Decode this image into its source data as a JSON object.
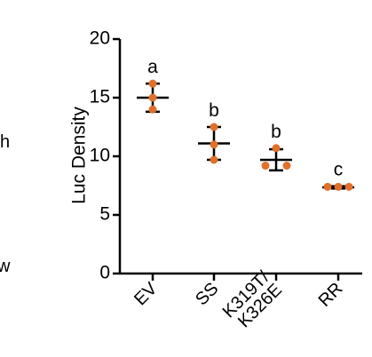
{
  "chart_data": {
    "type": "scatter",
    "title": "",
    "xlabel": "",
    "ylabel": "Luc Density",
    "ylim": [
      0,
      20
    ],
    "yticks": [
      "0",
      "5",
      "10",
      "15",
      "20"
    ],
    "grid": false,
    "legend": "none",
    "categories": [
      "EV",
      "SS",
      "K319T/\nK326E",
      "RR"
    ],
    "category_lines": [
      [
        "EV"
      ],
      [
        "SS"
      ],
      [
        "K319T/",
        "K326E"
      ],
      [
        "RR"
      ]
    ],
    "points": [
      [
        16.2,
        15.0,
        14.0
      ],
      [
        12.5,
        11.0,
        9.7
      ],
      [
        10.7,
        9.2,
        9.2
      ],
      [
        7.4,
        7.4,
        7.4
      ]
    ],
    "means": [
      15.0,
      11.1,
      9.7,
      7.35
    ],
    "sd": [
      1.2,
      1.4,
      0.9,
      0.1
    ],
    "significance": [
      "a",
      "b",
      "b",
      "c"
    ],
    "point_color": "#e0702a",
    "bar_color": "#000000"
  },
  "edge_text": [
    "h",
    "w"
  ]
}
